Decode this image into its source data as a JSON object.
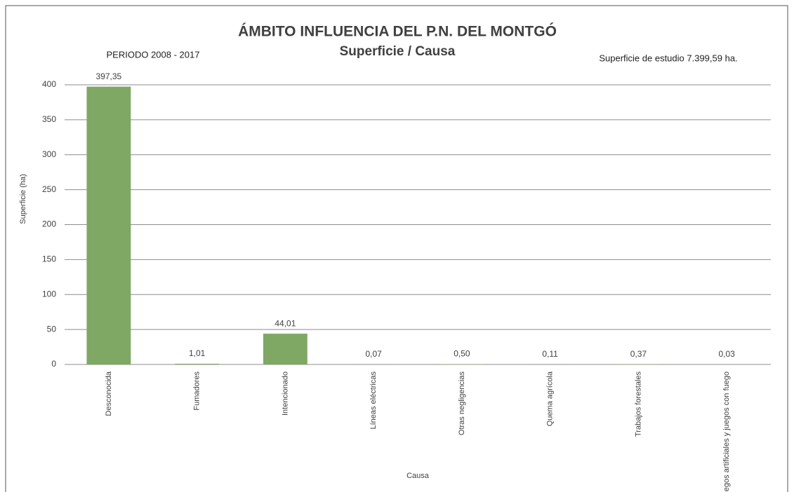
{
  "chart_data": {
    "type": "bar",
    "title": "ÁMBITO INFLUENCIA DEL P.N. DEL MONTGÓ",
    "subtitle": "Superficie / Causa",
    "annotations": [
      "PERIODO 2008 - 2017",
      "Superficie de estudio 7.399,59 ha."
    ],
    "x_label": "Causa",
    "y_label": "Superficie (ha)",
    "categories": [
      "Desconocida",
      "Fumadores",
      "Intencionado",
      "Líneas eléctricas",
      "Otras negligencias",
      "Quema agrícola",
      "Trabajos forestales",
      "Fuegos artificiales y juegos con fuego"
    ],
    "values": [
      397.35,
      1.01,
      44.01,
      0.07,
      0.5,
      0.11,
      0.37,
      0.03
    ],
    "value_labels": [
      "397,35",
      "1,01",
      "44,01",
      "0,07",
      "0,50",
      "0,11",
      "0,37",
      "0,03"
    ],
    "color": "#7ea864",
    "ylim": [
      0,
      400
    ],
    "yticks": [
      0,
      50,
      100,
      150,
      200,
      250,
      300,
      350,
      400
    ],
    "grid": true
  }
}
